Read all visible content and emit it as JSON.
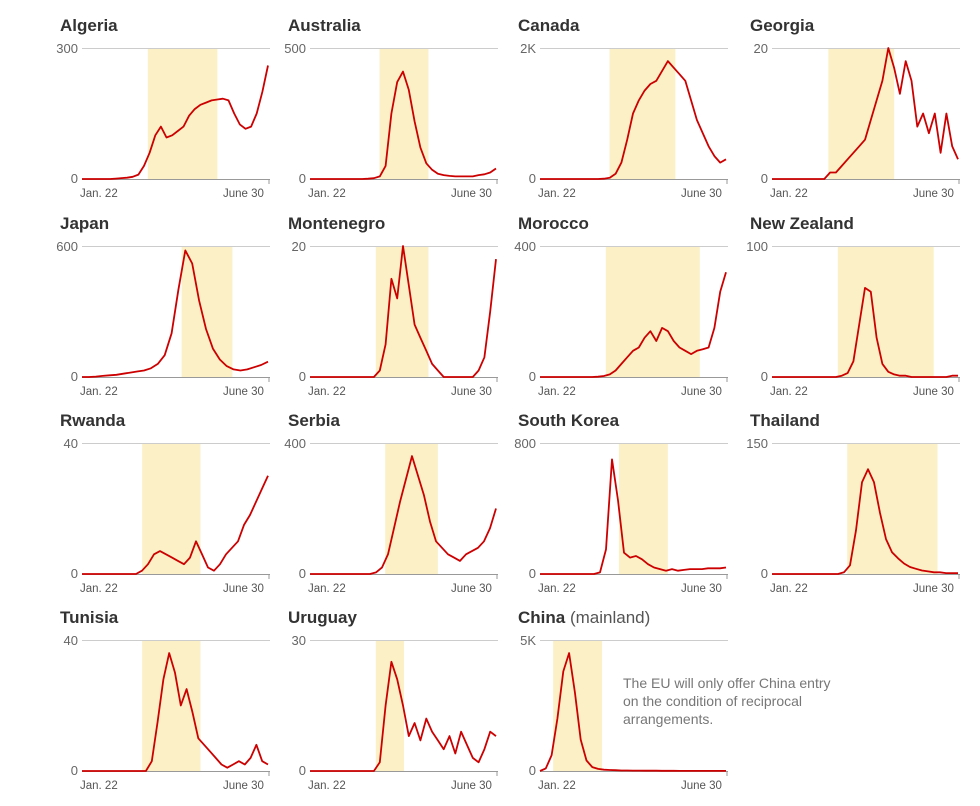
{
  "note": "The EU will only offer China entry on the condition of reciprocal arrangements.",
  "colors": {
    "line": "#cc0000",
    "shade": "#fbf0c6",
    "axis": "#999999",
    "grid": "#cccccc"
  },
  "chart_data": [
    {
      "type": "line",
      "title": "Algeria",
      "subtitle": "",
      "x_start_label": "Jan. 22",
      "x_end_label": "June 30",
      "ylim": [
        0,
        300
      ],
      "yticks": [
        "0",
        "300"
      ],
      "highlight": [
        0.35,
        0.72
      ],
      "values": [
        0,
        0,
        0,
        0,
        0,
        0,
        1,
        2,
        3,
        5,
        10,
        30,
        60,
        100,
        120,
        95,
        100,
        110,
        120,
        145,
        160,
        170,
        175,
        180,
        182,
        184,
        180,
        150,
        125,
        115,
        120,
        150,
        200,
        260
      ]
    },
    {
      "type": "line",
      "title": "Australia",
      "subtitle": "",
      "x_start_label": "Jan. 22",
      "x_end_label": "June 30",
      "ylim": [
        0,
        500
      ],
      "yticks": [
        "0",
        "500"
      ],
      "highlight": [
        0.37,
        0.63
      ],
      "values": [
        0,
        0,
        0,
        0,
        0,
        0,
        0,
        0,
        0,
        0,
        1,
        3,
        10,
        50,
        250,
        370,
        410,
        340,
        220,
        120,
        60,
        35,
        20,
        15,
        12,
        10,
        10,
        10,
        10,
        15,
        18,
        25,
        40
      ]
    },
    {
      "type": "line",
      "title": "Canada",
      "subtitle": "",
      "x_start_label": "Jan. 22",
      "x_end_label": "June 30",
      "ylim": [
        0,
        2000
      ],
      "yticks": [
        "0",
        "2K"
      ],
      "highlight": [
        0.37,
        0.72
      ],
      "values": [
        0,
        0,
        0,
        0,
        0,
        0,
        0,
        0,
        0,
        0,
        0,
        5,
        20,
        80,
        250,
        600,
        1000,
        1200,
        1350,
        1450,
        1500,
        1650,
        1800,
        1700,
        1600,
        1500,
        1200,
        900,
        700,
        500,
        350,
        250,
        300
      ]
    },
    {
      "type": "line",
      "title": "Georgia",
      "subtitle": "",
      "x_start_label": "Jan. 22",
      "x_end_label": "June 30",
      "ylim": [
        0,
        20
      ],
      "yticks": [
        "0",
        "20"
      ],
      "highlight": [
        0.3,
        0.65
      ],
      "values": [
        0,
        0,
        0,
        0,
        0,
        0,
        0,
        0,
        0,
        0,
        1,
        1,
        2,
        3,
        4,
        5,
        6,
        9,
        12,
        15,
        20,
        17,
        13,
        18,
        15,
        8,
        10,
        7,
        10,
        4,
        10,
        5,
        3
      ]
    },
    {
      "type": "line",
      "title": "Japan",
      "subtitle": "",
      "x_start_label": "Jan. 22",
      "x_end_label": "June 30",
      "ylim": [
        0,
        600
      ],
      "yticks": [
        "0",
        "600"
      ],
      "highlight": [
        0.53,
        0.8
      ],
      "values": [
        0,
        0,
        2,
        5,
        8,
        10,
        15,
        20,
        25,
        30,
        40,
        60,
        100,
        200,
        400,
        580,
        520,
        350,
        220,
        130,
        80,
        50,
        35,
        30,
        35,
        45,
        55,
        70
      ]
    },
    {
      "type": "line",
      "title": "Montenegro",
      "subtitle": "",
      "x_start_label": "Jan. 22",
      "x_end_label": "June 30",
      "ylim": [
        0,
        20
      ],
      "yticks": [
        "0",
        "20"
      ],
      "highlight": [
        0.35,
        0.63
      ],
      "values": [
        0,
        0,
        0,
        0,
        0,
        0,
        0,
        0,
        0,
        0,
        0,
        0,
        1,
        5,
        15,
        12,
        20,
        14,
        8,
        6,
        4,
        2,
        1,
        0,
        0,
        0,
        0,
        0,
        0,
        1,
        3,
        10,
        18
      ]
    },
    {
      "type": "line",
      "title": "Morocco",
      "subtitle": "",
      "x_start_label": "Jan. 22",
      "x_end_label": "June 30",
      "ylim": [
        0,
        400
      ],
      "yticks": [
        "0",
        "400"
      ],
      "highlight": [
        0.35,
        0.85
      ],
      "values": [
        0,
        0,
        0,
        0,
        0,
        0,
        0,
        0,
        0,
        0,
        1,
        3,
        8,
        20,
        40,
        60,
        80,
        90,
        120,
        140,
        110,
        150,
        140,
        110,
        90,
        80,
        70,
        80,
        85,
        90,
        150,
        260,
        320
      ]
    },
    {
      "type": "line",
      "title": "New Zealand",
      "subtitle": "",
      "x_start_label": "Jan. 22",
      "x_end_label": "June 30",
      "ylim": [
        0,
        100
      ],
      "yticks": [
        "0",
        "100"
      ],
      "highlight": [
        0.35,
        0.86
      ],
      "values": [
        0,
        0,
        0,
        0,
        0,
        0,
        0,
        0,
        0,
        0,
        0,
        0,
        1,
        3,
        12,
        40,
        68,
        65,
        30,
        10,
        4,
        2,
        1,
        1,
        0,
        0,
        0,
        0,
        0,
        0,
        0,
        1,
        1
      ]
    },
    {
      "type": "line",
      "title": "Rwanda",
      "subtitle": "",
      "x_start_label": "Jan. 22",
      "x_end_label": "June 30",
      "ylim": [
        0,
        40
      ],
      "yticks": [
        "0",
        "40"
      ],
      "highlight": [
        0.32,
        0.63
      ],
      "values": [
        0,
        0,
        0,
        0,
        0,
        0,
        0,
        0,
        0,
        0,
        1,
        3,
        6,
        7,
        6,
        5,
        4,
        3,
        5,
        10,
        6,
        2,
        1,
        3,
        6,
        8,
        10,
        15,
        18,
        22,
        26,
        30
      ]
    },
    {
      "type": "line",
      "title": "Serbia",
      "subtitle": "",
      "x_start_label": "Jan. 22",
      "x_end_label": "June 30",
      "ylim": [
        0,
        400
      ],
      "yticks": [
        "0",
        "400"
      ],
      "highlight": [
        0.4,
        0.68
      ],
      "values": [
        0,
        0,
        0,
        0,
        0,
        0,
        0,
        0,
        0,
        0,
        0,
        5,
        20,
        60,
        140,
        220,
        290,
        360,
        300,
        240,
        160,
        100,
        80,
        60,
        50,
        40,
        60,
        70,
        80,
        100,
        140,
        200
      ]
    },
    {
      "type": "line",
      "title": "South Korea",
      "subtitle": "",
      "x_start_label": "Jan. 22",
      "x_end_label": "June 30",
      "ylim": [
        0,
        800
      ],
      "yticks": [
        "0",
        "800"
      ],
      "highlight": [
        0.42,
        0.68
      ],
      "values": [
        0,
        0,
        0,
        0,
        0,
        0,
        0,
        0,
        0,
        0,
        10,
        150,
        700,
        450,
        130,
        100,
        110,
        90,
        60,
        40,
        30,
        20,
        30,
        20,
        25,
        30,
        30,
        30,
        35,
        35,
        35,
        40
      ]
    },
    {
      "type": "line",
      "title": "Thailand",
      "subtitle": "",
      "x_start_label": "Jan. 22",
      "x_end_label": "June 30",
      "ylim": [
        0,
        150
      ],
      "yticks": [
        "0",
        "150"
      ],
      "highlight": [
        0.4,
        0.88
      ],
      "values": [
        0,
        0,
        0,
        0,
        0,
        0,
        0,
        0,
        0,
        0,
        0,
        0,
        2,
        10,
        50,
        105,
        120,
        105,
        70,
        40,
        25,
        18,
        12,
        8,
        6,
        4,
        3,
        2,
        2,
        1,
        1,
        1
      ]
    },
    {
      "type": "line",
      "title": "Tunisia",
      "subtitle": "",
      "x_start_label": "Jan. 22",
      "x_end_label": "June 30",
      "ylim": [
        0,
        40
      ],
      "yticks": [
        "0",
        "40"
      ],
      "highlight": [
        0.32,
        0.63
      ],
      "values": [
        0,
        0,
        0,
        0,
        0,
        0,
        0,
        0,
        0,
        0,
        0,
        0,
        3,
        15,
        28,
        36,
        30,
        20,
        25,
        18,
        10,
        8,
        6,
        4,
        2,
        1,
        2,
        3,
        2,
        4,
        8,
        3,
        2
      ]
    },
    {
      "type": "line",
      "title": "Uruguay",
      "subtitle": "",
      "x_start_label": "Jan. 22",
      "x_end_label": "June 30",
      "ylim": [
        0,
        30
      ],
      "yticks": [
        "0",
        "30"
      ],
      "highlight": [
        0.35,
        0.5
      ],
      "values": [
        0,
        0,
        0,
        0,
        0,
        0,
        0,
        0,
        0,
        0,
        0,
        0,
        2,
        15,
        25,
        21,
        15,
        8,
        11,
        7,
        12,
        9,
        7,
        5,
        8,
        4,
        9,
        6,
        3,
        2,
        5,
        9,
        8
      ]
    },
    {
      "type": "line",
      "title": "China",
      "subtitle": "(mainland)",
      "x_start_label": "Jan. 22",
      "x_end_label": "June 30",
      "ylim": [
        0,
        5000
      ],
      "yticks": [
        "0",
        "5K"
      ],
      "highlight": [
        0.07,
        0.33
      ],
      "values": [
        0,
        100,
        600,
        2000,
        3800,
        4500,
        3000,
        1200,
        400,
        150,
        80,
        50,
        40,
        30,
        20,
        20,
        15,
        15,
        12,
        10,
        10,
        8,
        8,
        6,
        5,
        5,
        4,
        3,
        3,
        2,
        2,
        2,
        2
      ]
    }
  ]
}
